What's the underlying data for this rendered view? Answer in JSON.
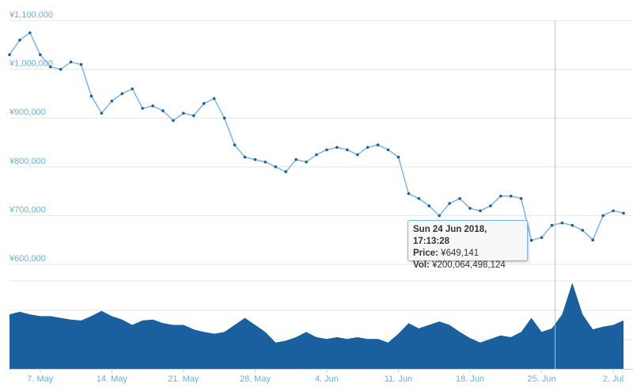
{
  "chart_data": {
    "type": "line",
    "colors": {
      "price_line": "#7cb5ec",
      "price_marker": "#1a5f9e",
      "volume_fill": "#1a5f9e",
      "axis_text": "#6ab0d8",
      "grid": "#e6e6e6",
      "crosshair": "#c0c0c0",
      "tooltip_border": "#7cb5ec"
    },
    "price_axis": {
      "ylim": [
        600000,
        1100000
      ],
      "ticks": [
        600000,
        700000,
        800000,
        900000,
        1000000,
        1100000
      ],
      "tick_labels": [
        "¥600,000",
        "¥700,000",
        "¥800,000",
        "¥900,000",
        "¥1,000,000",
        "¥1,100,000"
      ]
    },
    "x_axis": {
      "xlim": [
        "2018-05-04",
        "2018-07-03"
      ],
      "ticks": [
        "2018-05-07",
        "2018-05-14",
        "2018-05-21",
        "2018-05-28",
        "2018-06-04",
        "2018-06-11",
        "2018-06-18",
        "2018-06-25",
        "2018-07-02"
      ],
      "tick_labels": [
        "7. May",
        "14. May",
        "21. May",
        "28. May",
        "4. Jun",
        "11. Jun",
        "18. Jun",
        "25. Jun",
        "2. Jul"
      ]
    },
    "series": [
      {
        "kind": "price",
        "x": [
          "2018-05-04",
          "2018-05-05",
          "2018-05-06",
          "2018-05-07",
          "2018-05-08",
          "2018-05-09",
          "2018-05-10",
          "2018-05-11",
          "2018-05-12",
          "2018-05-13",
          "2018-05-14",
          "2018-05-15",
          "2018-05-16",
          "2018-05-17",
          "2018-05-18",
          "2018-05-19",
          "2018-05-20",
          "2018-05-21",
          "2018-05-22",
          "2018-05-23",
          "2018-05-24",
          "2018-05-25",
          "2018-05-26",
          "2018-05-27",
          "2018-05-28",
          "2018-05-29",
          "2018-05-30",
          "2018-05-31",
          "2018-06-01",
          "2018-06-02",
          "2018-06-03",
          "2018-06-04",
          "2018-06-05",
          "2018-06-06",
          "2018-06-07",
          "2018-06-08",
          "2018-06-09",
          "2018-06-10",
          "2018-06-11",
          "2018-06-12",
          "2018-06-13",
          "2018-06-14",
          "2018-06-15",
          "2018-06-16",
          "2018-06-17",
          "2018-06-18",
          "2018-06-19",
          "2018-06-20",
          "2018-06-21",
          "2018-06-22",
          "2018-06-23",
          "2018-06-24",
          "2018-06-25",
          "2018-06-26",
          "2018-06-27",
          "2018-06-28",
          "2018-06-29",
          "2018-06-30",
          "2018-07-01",
          "2018-07-02",
          "2018-07-03"
        ],
        "values": [
          1030000,
          1060000,
          1075000,
          1030000,
          1005000,
          1000000,
          1015000,
          1010000,
          945000,
          910000,
          935000,
          950000,
          960000,
          920000,
          925000,
          915000,
          895000,
          910000,
          905000,
          930000,
          940000,
          900000,
          845000,
          820000,
          815000,
          810000,
          800000,
          790000,
          815000,
          810000,
          825000,
          835000,
          840000,
          835000,
          825000,
          840000,
          845000,
          835000,
          820000,
          745000,
          735000,
          720000,
          700000,
          725000,
          735000,
          715000,
          710000,
          720000,
          740000,
          740000,
          735000,
          649141,
          655000,
          680000,
          685000,
          680000,
          670000,
          650000,
          700000,
          710000,
          705000
        ]
      },
      {
        "kind": "volume",
        "x": [
          "2018-05-04",
          "2018-05-05",
          "2018-05-06",
          "2018-05-07",
          "2018-05-08",
          "2018-05-09",
          "2018-05-10",
          "2018-05-11",
          "2018-05-12",
          "2018-05-13",
          "2018-05-14",
          "2018-05-15",
          "2018-05-16",
          "2018-05-17",
          "2018-05-18",
          "2018-05-19",
          "2018-05-20",
          "2018-05-21",
          "2018-05-22",
          "2018-05-23",
          "2018-05-24",
          "2018-05-25",
          "2018-05-26",
          "2018-05-27",
          "2018-05-28",
          "2018-05-29",
          "2018-05-30",
          "2018-05-31",
          "2018-06-01",
          "2018-06-02",
          "2018-06-03",
          "2018-06-04",
          "2018-06-05",
          "2018-06-06",
          "2018-06-07",
          "2018-06-08",
          "2018-06-09",
          "2018-06-10",
          "2018-06-11",
          "2018-06-12",
          "2018-06-13",
          "2018-06-14",
          "2018-06-15",
          "2018-06-16",
          "2018-06-17",
          "2018-06-18",
          "2018-06-19",
          "2018-06-20",
          "2018-06-21",
          "2018-06-22",
          "2018-06-23",
          "2018-06-24",
          "2018-06-25",
          "2018-06-26",
          "2018-06-27",
          "2018-06-28",
          "2018-06-29",
          "2018-06-30",
          "2018-07-01",
          "2018-07-02",
          "2018-07-03"
        ],
        "values": [
          0.62,
          0.65,
          0.62,
          0.6,
          0.6,
          0.58,
          0.56,
          0.55,
          0.6,
          0.66,
          0.6,
          0.56,
          0.5,
          0.55,
          0.56,
          0.52,
          0.5,
          0.5,
          0.45,
          0.42,
          0.4,
          0.42,
          0.5,
          0.58,
          0.5,
          0.42,
          0.3,
          0.32,
          0.36,
          0.42,
          0.36,
          0.34,
          0.36,
          0.34,
          0.36,
          0.34,
          0.34,
          0.3,
          0.4,
          0.52,
          0.46,
          0.5,
          0.54,
          0.5,
          0.42,
          0.35,
          0.3,
          0.34,
          0.38,
          0.36,
          0.42,
          0.58,
          0.42,
          0.46,
          0.62,
          0.98,
          0.62,
          0.45,
          0.48,
          0.5,
          0.55
        ]
      }
    ],
    "tooltip": {
      "time": "Sun 24 Jun 2018, 17:13:28",
      "price_label": "Price:",
      "price_value": "¥649,141",
      "vol_label": "Vol:",
      "vol_value": "¥200,064,498,124",
      "x": "2018-06-24"
    }
  }
}
